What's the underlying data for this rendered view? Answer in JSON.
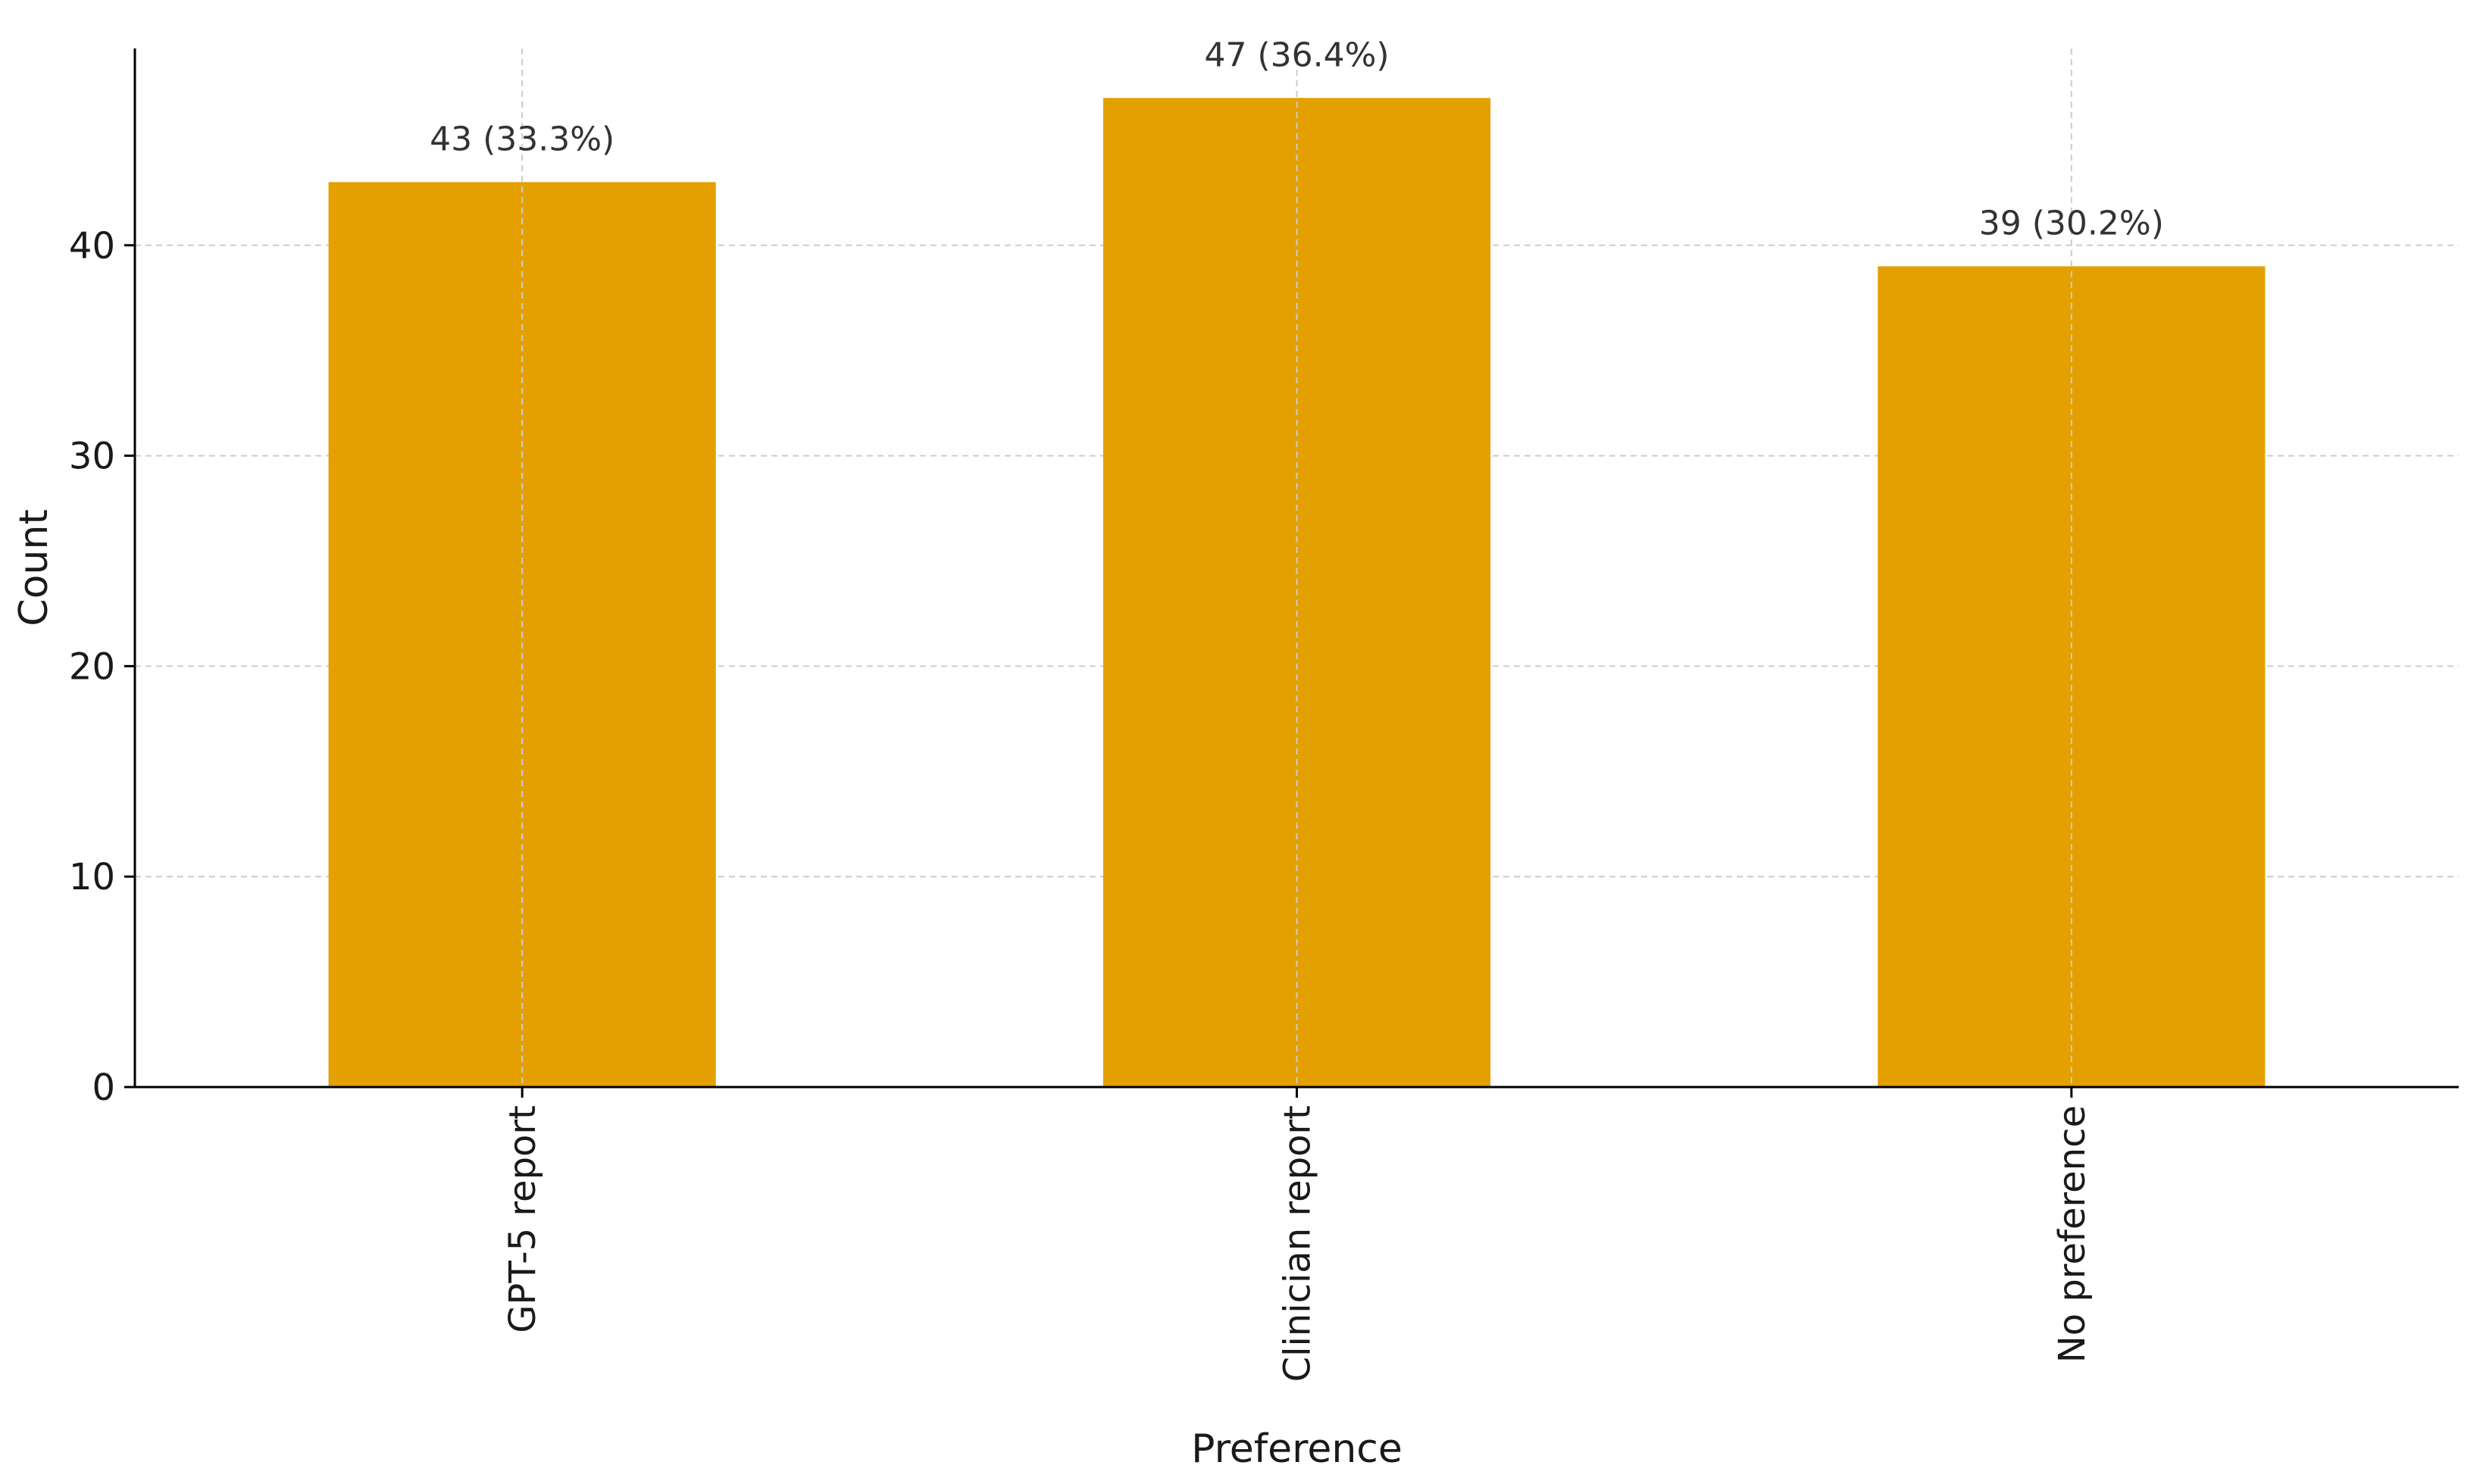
{
  "chart_data": {
    "type": "bar",
    "title": "",
    "xlabel": "Preference",
    "ylabel": "Count",
    "categories": [
      "GPT-5 report",
      "Clinician report",
      "No preference"
    ],
    "values": [
      43,
      47,
      39
    ],
    "data_labels": [
      "43 (33.3%)",
      "47 (36.4%)",
      "39 (30.2%)"
    ],
    "ylim": [
      0,
      49.35
    ],
    "yticks": [
      0,
      10,
      20,
      30,
      40
    ],
    "grid": true,
    "legend": "none",
    "colors": {
      "bar": "#E3A000",
      "grid": "#cccccc",
      "axis": "#000000"
    }
  }
}
